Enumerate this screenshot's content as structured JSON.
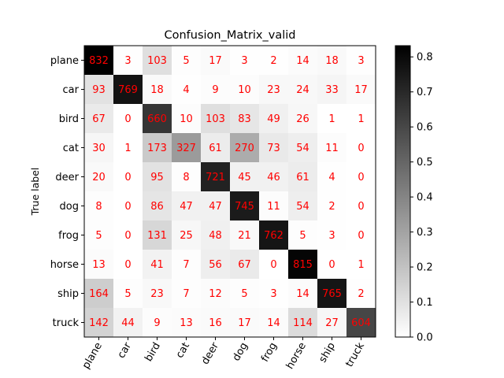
{
  "chart_data": {
    "type": "heatmap",
    "title": "Confusion_Matrix_valid",
    "xlabel": "",
    "ylabel": "True label",
    "row_labels": [
      "plane",
      "car",
      "bird",
      "cat",
      "deer",
      "dog",
      "frog",
      "horse",
      "ship",
      "truck"
    ],
    "col_labels": [
      "plane",
      "car",
      "bird",
      "cat",
      "deer",
      "dog",
      "frog",
      "horse",
      "ship",
      "truck"
    ],
    "values": [
      [
        832,
        3,
        103,
        5,
        17,
        3,
        2,
        14,
        18,
        3
      ],
      [
        93,
        769,
        18,
        4,
        9,
        10,
        23,
        24,
        33,
        17
      ],
      [
        67,
        0,
        660,
        10,
        103,
        83,
        49,
        26,
        1,
        1
      ],
      [
        30,
        1,
        173,
        327,
        61,
        270,
        73,
        54,
        11,
        0
      ],
      [
        20,
        0,
        95,
        8,
        721,
        45,
        46,
        61,
        4,
        0
      ],
      [
        8,
        0,
        86,
        47,
        47,
        745,
        11,
        54,
        2,
        0
      ],
      [
        5,
        0,
        131,
        25,
        48,
        21,
        762,
        5,
        3,
        0
      ],
      [
        13,
        0,
        41,
        7,
        56,
        67,
        0,
        815,
        0,
        1
      ],
      [
        164,
        5,
        23,
        7,
        12,
        5,
        3,
        14,
        765,
        2
      ],
      [
        142,
        44,
        9,
        13,
        16,
        17,
        14,
        114,
        27,
        604
      ]
    ],
    "colormap": "greys",
    "text_color": "#ff0000",
    "colorbar": {
      "range": [
        0.0,
        0.832
      ],
      "ticks": [
        "0.0",
        "0.1",
        "0.2",
        "0.3",
        "0.4",
        "0.5",
        "0.6",
        "0.7",
        "0.8"
      ]
    },
    "grid": false
  }
}
